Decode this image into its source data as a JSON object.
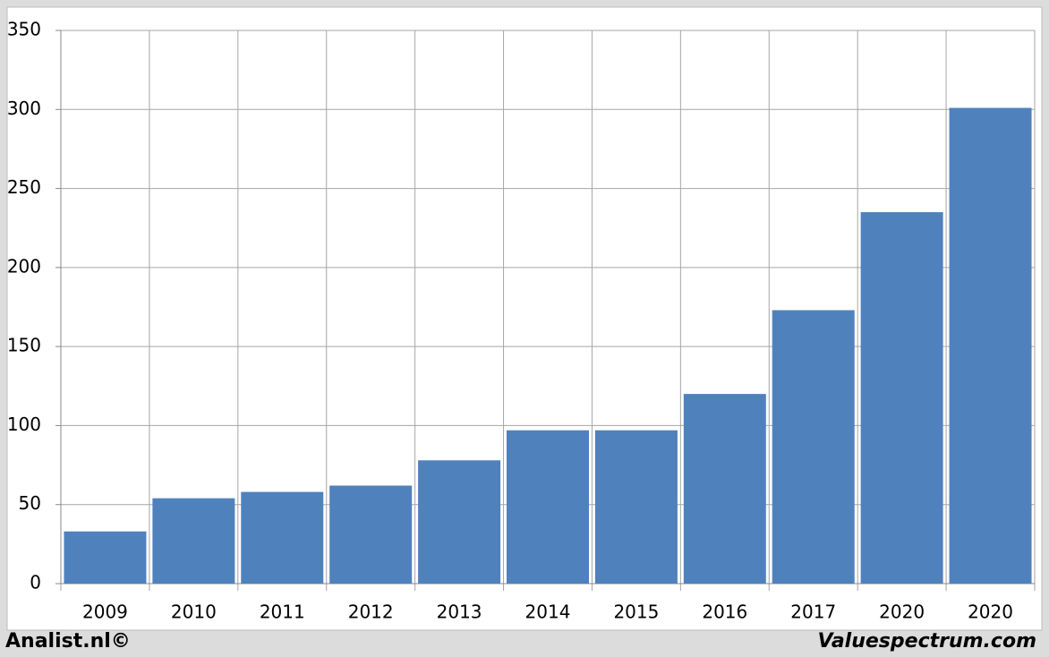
{
  "chart_data": {
    "type": "bar",
    "categories": [
      "2009",
      "2010",
      "2011",
      "2012",
      "2013",
      "2014",
      "2015",
      "2016",
      "2017",
      "2020",
      "2020"
    ],
    "values": [
      33,
      54,
      58,
      62,
      78,
      97,
      97,
      120,
      173,
      235,
      301
    ],
    "color": "#4f81bd",
    "ylim": [
      0,
      350
    ],
    "yticks": [
      0,
      50,
      100,
      150,
      200,
      250,
      300,
      350
    ],
    "grid": true
  },
  "footer": {
    "left": "Analist.nl©",
    "right": "Valuespectrum.com"
  }
}
